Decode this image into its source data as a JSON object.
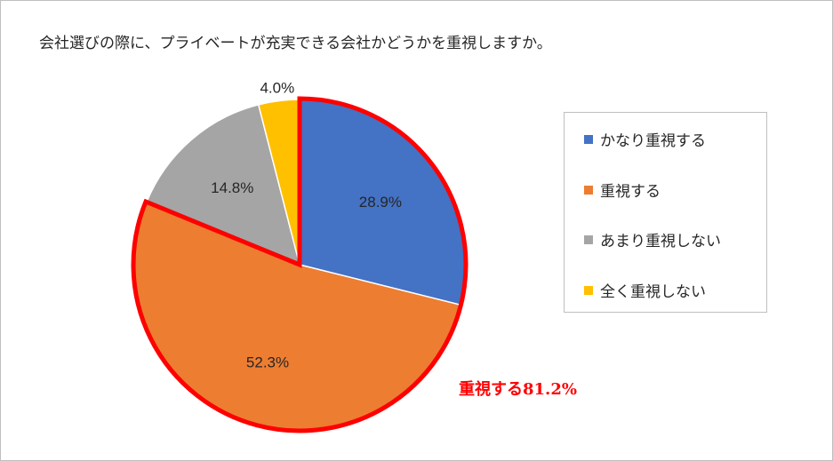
{
  "chart_data": {
    "type": "pie",
    "title": "会社選びの際に、プライベートが充実できる会社かどうかを重視しますか。",
    "categories": [
      "かなり重視する",
      "重視する",
      "あまり重視しない",
      "全く重視しない"
    ],
    "values": [
      28.9,
      52.3,
      14.8,
      4.0
    ],
    "data_labels": [
      "28.9%",
      "52.3%",
      "14.8%",
      "4.0%"
    ],
    "colors": [
      "#4472c4",
      "#ed7d31",
      "#a5a5a5",
      "#ffc000"
    ],
    "legend_position": "right",
    "annotation": {
      "text": "重視する81.2%",
      "color": "#ff0000",
      "highlighted_categories": [
        "かなり重視する",
        "重視する"
      ]
    }
  }
}
